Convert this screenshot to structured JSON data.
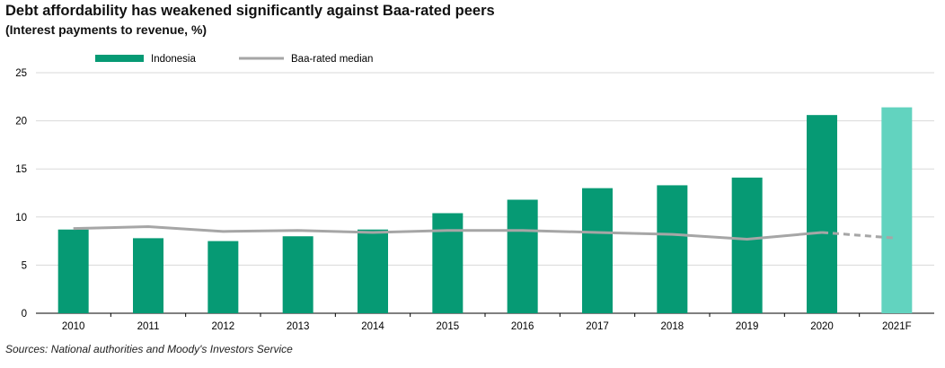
{
  "title": "Debt affordability has weakened significantly against Baa-rated peers",
  "subtitle": "(Interest payments to revenue, %)",
  "source": "Sources: National authorities and Moody's Investors Service",
  "chart_data": {
    "type": "bar",
    "categories": [
      "2010",
      "2011",
      "2012",
      "2013",
      "2014",
      "2015",
      "2016",
      "2017",
      "2018",
      "2019",
      "2020",
      "2021F"
    ],
    "series": [
      {
        "name": "Indonesia",
        "kind": "bar",
        "color": "#069a74",
        "forecast_color": "#62d3bf",
        "values": [
          8.7,
          7.8,
          7.5,
          8.0,
          8.7,
          10.4,
          11.8,
          13.0,
          13.3,
          14.1,
          20.6,
          21.4
        ]
      },
      {
        "name": "Baa-rated median",
        "kind": "line",
        "color": "#a6a6a6",
        "values": [
          8.8,
          9.0,
          8.5,
          8.6,
          8.4,
          8.6,
          8.6,
          8.4,
          8.2,
          7.7,
          8.4,
          7.8
        ]
      }
    ],
    "forecast_from_index": 11,
    "yticks": [
      0,
      5,
      10,
      15,
      20,
      25
    ],
    "ylim": [
      0,
      25
    ],
    "xlabel": "",
    "ylabel": "",
    "grid": true,
    "legend_position": "top-left"
  }
}
